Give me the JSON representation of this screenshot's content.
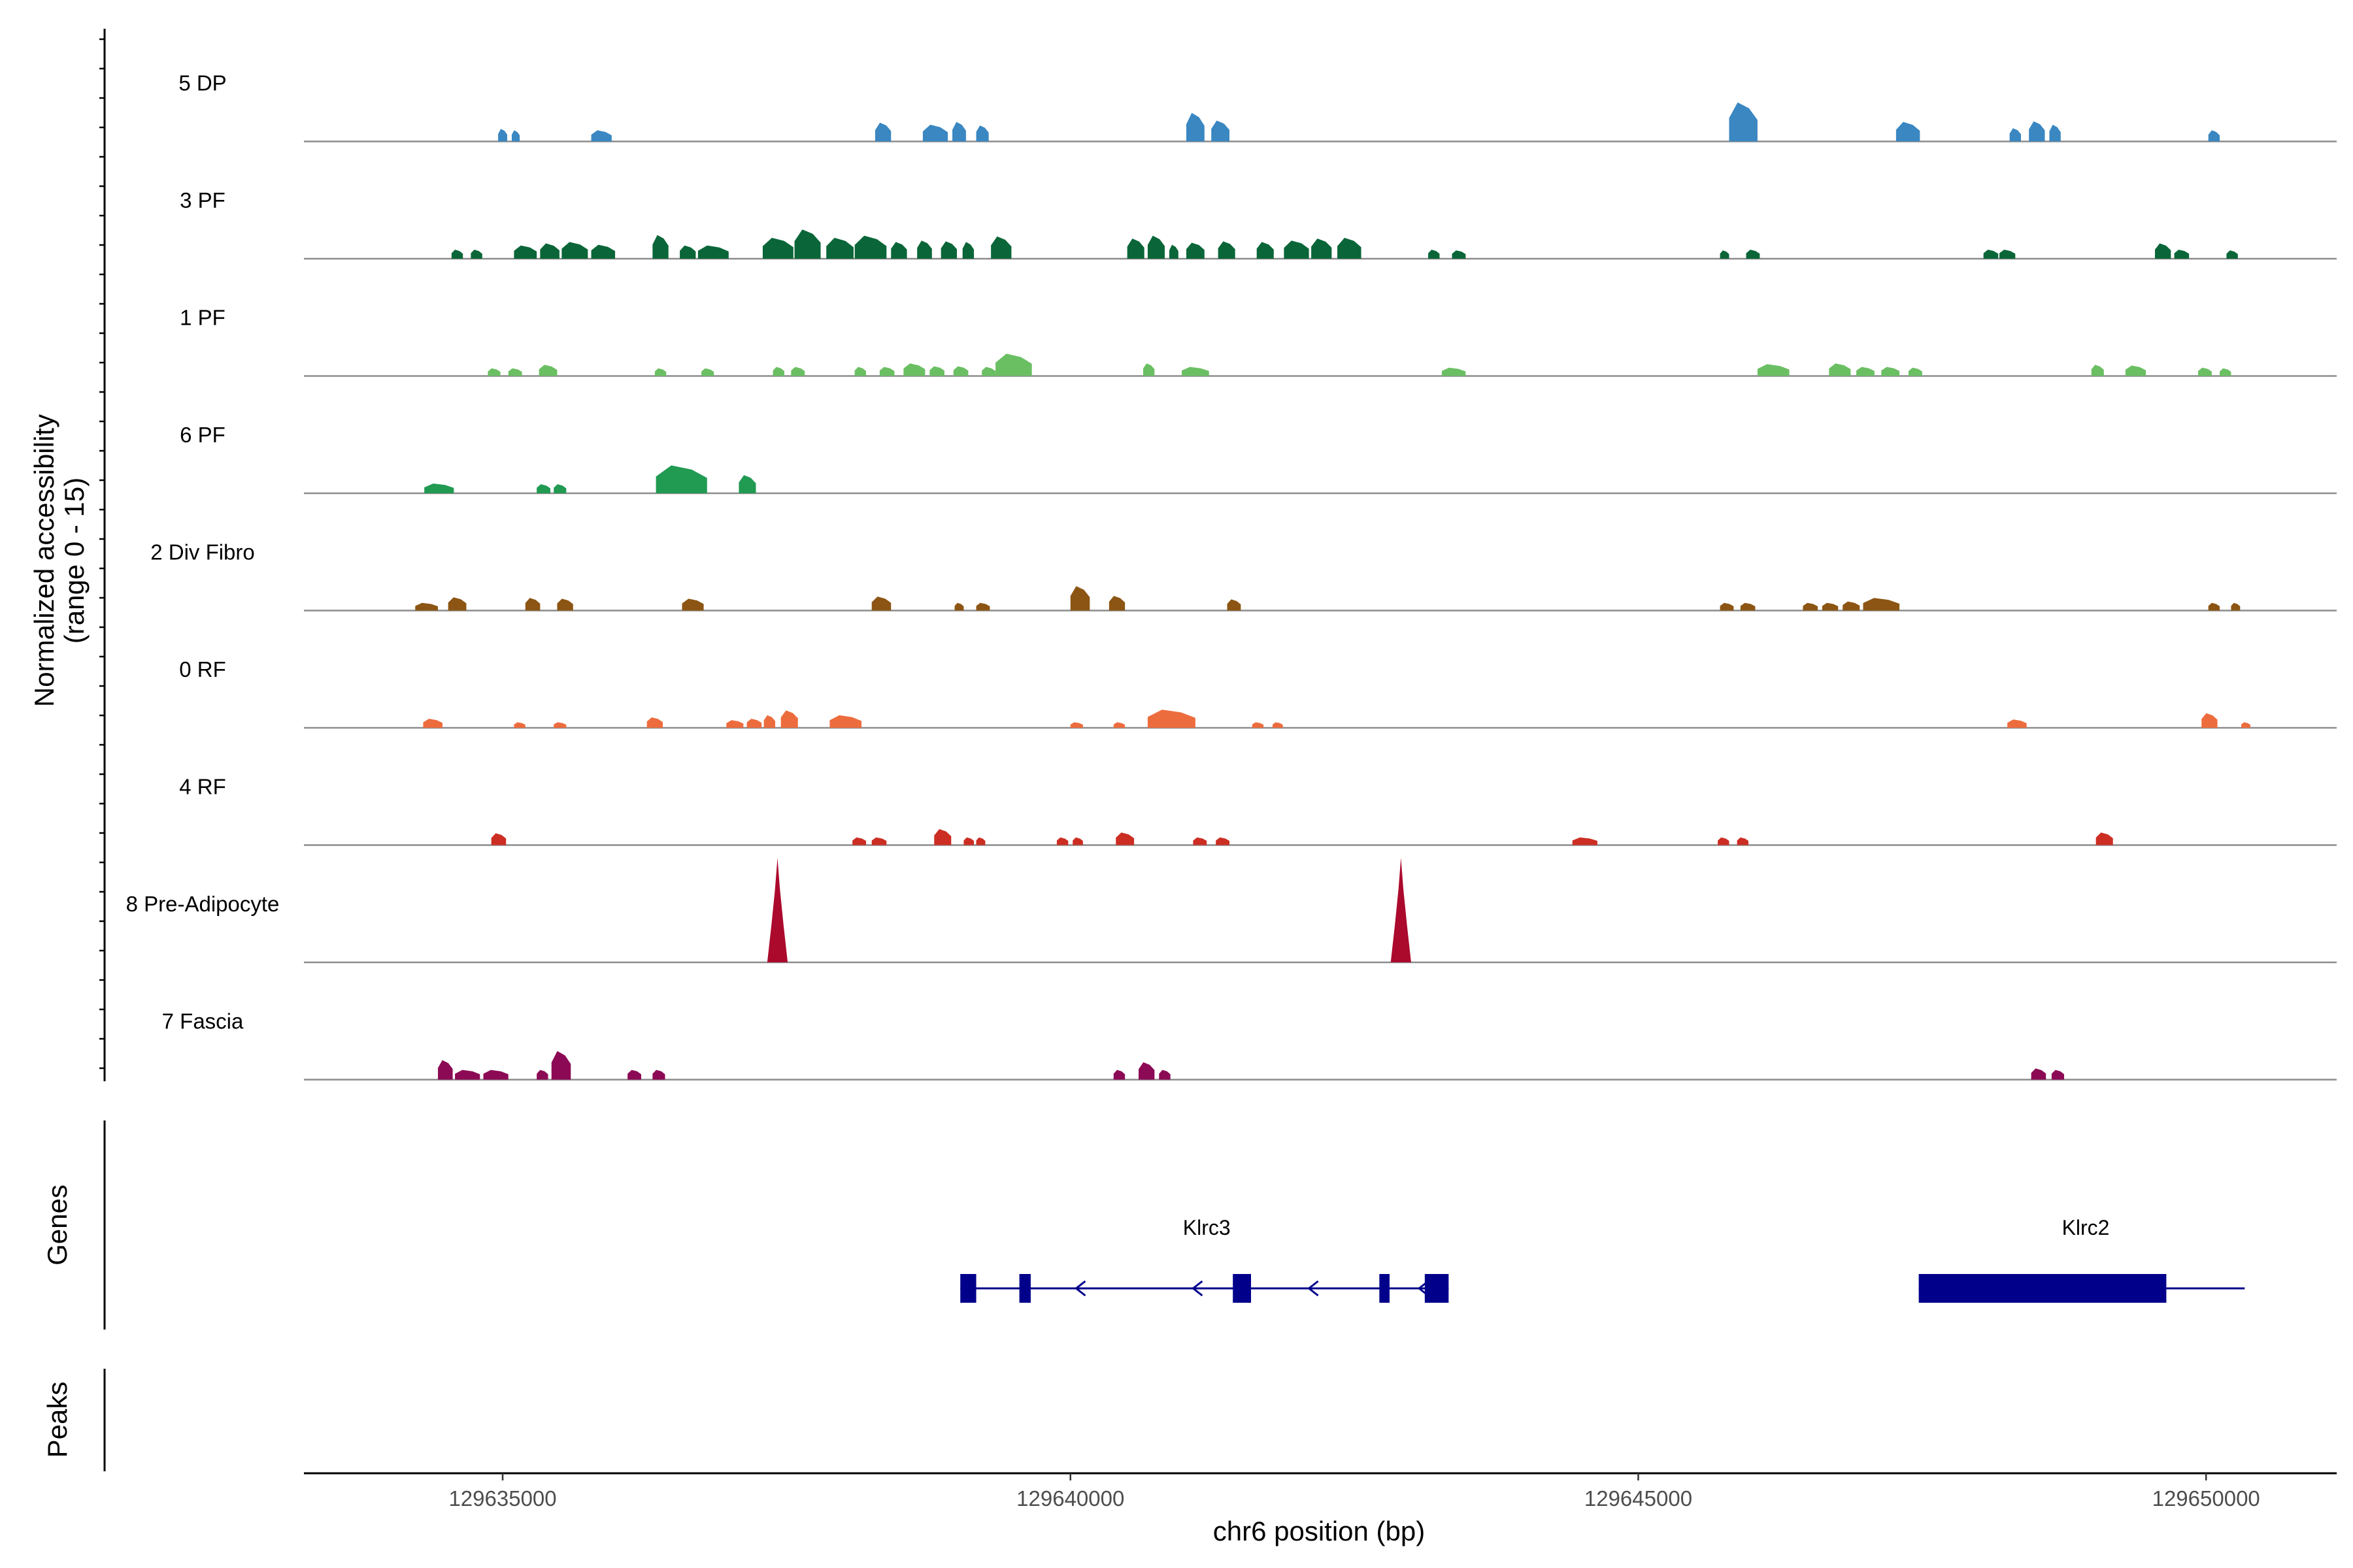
{
  "chart_data": {
    "type": "area",
    "region": "chr6",
    "xlim": [
      129633250,
      129651150
    ],
    "xticks": [
      129635000,
      129640000,
      129645000,
      129650000
    ],
    "xtick_labels": [
      "129635000",
      "129640000",
      "129645000",
      "129650000"
    ],
    "xlabel": "chr6 position (bp)",
    "ylabel_line1": "Normalized accessibility",
    "ylabel_line2": "(range 0 - 15)",
    "ylim": [
      0,
      15
    ],
    "tracks": [
      {
        "name": "5 DP",
        "color": "#3a87c2",
        "peaks": [
          {
            "start": 129634960,
            "end": 129635040,
            "height": 1.8
          },
          {
            "start": 129635080,
            "end": 129635150,
            "height": 1.6
          },
          {
            "start": 129635780,
            "end": 129635960,
            "height": 1.6
          },
          {
            "start": 129638280,
            "end": 129638420,
            "height": 2.7
          },
          {
            "start": 129638700,
            "end": 129638920,
            "height": 2.4
          },
          {
            "start": 129638960,
            "end": 129639080,
            "height": 2.8
          },
          {
            "start": 129639170,
            "end": 129639280,
            "height": 2.3
          },
          {
            "start": 129641020,
            "end": 129641180,
            "height": 4.1
          },
          {
            "start": 129641240,
            "end": 129641400,
            "height": 3.0
          },
          {
            "start": 129645800,
            "end": 129646050,
            "height": 5.6
          },
          {
            "start": 129647270,
            "end": 129647480,
            "height": 2.8
          },
          {
            "start": 129648270,
            "end": 129648370,
            "height": 1.9
          },
          {
            "start": 129648440,
            "end": 129648580,
            "height": 2.9
          },
          {
            "start": 129648620,
            "end": 129648720,
            "height": 2.4
          },
          {
            "start": 129650020,
            "end": 129650120,
            "height": 1.6
          }
        ]
      },
      {
        "name": "3 PF",
        "color": "#0a6638",
        "peaks": [
          {
            "start": 129634550,
            "end": 129634650,
            "height": 1.3
          },
          {
            "start": 129634720,
            "end": 129634820,
            "height": 1.3
          },
          {
            "start": 129635100,
            "end": 129635300,
            "height": 1.9
          },
          {
            "start": 129635330,
            "end": 129635500,
            "height": 2.2
          },
          {
            "start": 129635520,
            "end": 129635750,
            "height": 2.4
          },
          {
            "start": 129635780,
            "end": 129635990,
            "height": 2.0
          },
          {
            "start": 129636320,
            "end": 129636460,
            "height": 3.4
          },
          {
            "start": 129636560,
            "end": 129636700,
            "height": 1.9
          },
          {
            "start": 129636720,
            "end": 129636990,
            "height": 1.9
          },
          {
            "start": 129637290,
            "end": 129637560,
            "height": 3.0
          },
          {
            "start": 129637570,
            "end": 129637800,
            "height": 4.2
          },
          {
            "start": 129637850,
            "end": 129638090,
            "height": 3.0
          },
          {
            "start": 129638100,
            "end": 129638380,
            "height": 3.3
          },
          {
            "start": 129638420,
            "end": 129638560,
            "height": 2.4
          },
          {
            "start": 129638650,
            "end": 129638780,
            "height": 2.6
          },
          {
            "start": 129638860,
            "end": 129639000,
            "height": 2.5
          },
          {
            "start": 129639050,
            "end": 129639150,
            "height": 2.4
          },
          {
            "start": 129639300,
            "end": 129639480,
            "height": 3.2
          },
          {
            "start": 129640500,
            "end": 129640650,
            "height": 2.9
          },
          {
            "start": 129640680,
            "end": 129640830,
            "height": 3.3
          },
          {
            "start": 129640870,
            "end": 129640950,
            "height": 2.0
          },
          {
            "start": 129641020,
            "end": 129641180,
            "height": 2.3
          },
          {
            "start": 129641300,
            "end": 129641450,
            "height": 2.5
          },
          {
            "start": 129641640,
            "end": 129641790,
            "height": 2.4
          },
          {
            "start": 129641880,
            "end": 129642100,
            "height": 2.6
          },
          {
            "start": 129642120,
            "end": 129642300,
            "height": 2.9
          },
          {
            "start": 129642350,
            "end": 129642560,
            "height": 3.0
          },
          {
            "start": 129643150,
            "end": 129643250,
            "height": 1.3
          },
          {
            "start": 129643360,
            "end": 129643480,
            "height": 1.2
          },
          {
            "start": 129645720,
            "end": 129645800,
            "height": 1.2
          },
          {
            "start": 129645950,
            "end": 129646070,
            "height": 1.3
          },
          {
            "start": 129648040,
            "end": 129648170,
            "height": 1.3
          },
          {
            "start": 129648180,
            "end": 129648320,
            "height": 1.3
          },
          {
            "start": 129649550,
            "end": 129649690,
            "height": 2.2
          },
          {
            "start": 129649720,
            "end": 129649850,
            "height": 1.3
          },
          {
            "start": 129650180,
            "end": 129650280,
            "height": 1.2
          }
        ]
      },
      {
        "name": "1 PF",
        "color": "#6bbf63",
        "peaks": [
          {
            "start": 129634870,
            "end": 129634980,
            "height": 1.1
          },
          {
            "start": 129635050,
            "end": 129635170,
            "height": 1.1
          },
          {
            "start": 129635320,
            "end": 129635480,
            "height": 1.6
          },
          {
            "start": 129636340,
            "end": 129636440,
            "height": 1.1
          },
          {
            "start": 129636750,
            "end": 129636860,
            "height": 1.1
          },
          {
            "start": 129637380,
            "end": 129637480,
            "height": 1.3
          },
          {
            "start": 129637540,
            "end": 129637660,
            "height": 1.3
          },
          {
            "start": 129638100,
            "end": 129638200,
            "height": 1.3
          },
          {
            "start": 129638320,
            "end": 129638450,
            "height": 1.3
          },
          {
            "start": 129638530,
            "end": 129638720,
            "height": 1.8
          },
          {
            "start": 129638760,
            "end": 129638890,
            "height": 1.4
          },
          {
            "start": 129638970,
            "end": 129639100,
            "height": 1.4
          },
          {
            "start": 129639220,
            "end": 129639340,
            "height": 1.3
          },
          {
            "start": 129639340,
            "end": 129639660,
            "height": 3.2
          },
          {
            "start": 129640640,
            "end": 129640740,
            "height": 1.8
          },
          {
            "start": 129640980,
            "end": 129641220,
            "height": 1.3
          },
          {
            "start": 129643270,
            "end": 129643480,
            "height": 1.2
          },
          {
            "start": 129646050,
            "end": 129646330,
            "height": 1.7
          },
          {
            "start": 129646680,
            "end": 129646870,
            "height": 1.8
          },
          {
            "start": 129646920,
            "end": 129647080,
            "height": 1.3
          },
          {
            "start": 129647140,
            "end": 129647300,
            "height": 1.3
          },
          {
            "start": 129647380,
            "end": 129647500,
            "height": 1.2
          },
          {
            "start": 129648990,
            "end": 129649100,
            "height": 1.6
          },
          {
            "start": 129649290,
            "end": 129649470,
            "height": 1.5
          },
          {
            "start": 129649930,
            "end": 129650050,
            "height": 1.2
          },
          {
            "start": 129650120,
            "end": 129650220,
            "height": 1.1
          }
        ]
      },
      {
        "name": "6 PF",
        "color": "#219a52",
        "peaks": [
          {
            "start": 129634310,
            "end": 129634570,
            "height": 1.4
          },
          {
            "start": 129635300,
            "end": 129635420,
            "height": 1.3
          },
          {
            "start": 129635450,
            "end": 129635560,
            "height": 1.3
          },
          {
            "start": 129636350,
            "end": 129636800,
            "height": 4.0
          },
          {
            "start": 129637080,
            "end": 129637230,
            "height": 2.6
          }
        ]
      },
      {
        "name": "2 Div Fibro",
        "color": "#8c5513",
        "peaks": [
          {
            "start": 129634230,
            "end": 129634430,
            "height": 1.1
          },
          {
            "start": 129634520,
            "end": 129634680,
            "height": 1.9
          },
          {
            "start": 129635200,
            "end": 129635330,
            "height": 1.8
          },
          {
            "start": 129635480,
            "end": 129635620,
            "height": 1.7
          },
          {
            "start": 129636580,
            "end": 129636770,
            "height": 1.7
          },
          {
            "start": 129638250,
            "end": 129638420,
            "height": 2.0
          },
          {
            "start": 129638980,
            "end": 129639060,
            "height": 1.1
          },
          {
            "start": 129639170,
            "end": 129639290,
            "height": 1.1
          },
          {
            "start": 129640000,
            "end": 129640170,
            "height": 3.5
          },
          {
            "start": 129640340,
            "end": 129640480,
            "height": 2.1
          },
          {
            "start": 129641380,
            "end": 129641500,
            "height": 1.6
          },
          {
            "start": 129645720,
            "end": 129645840,
            "height": 1.1
          },
          {
            "start": 129645900,
            "end": 129646030,
            "height": 1.1
          },
          {
            "start": 129646450,
            "end": 129646580,
            "height": 1.1
          },
          {
            "start": 129646620,
            "end": 129646760,
            "height": 1.1
          },
          {
            "start": 129646800,
            "end": 129646950,
            "height": 1.3
          },
          {
            "start": 129646980,
            "end": 129647300,
            "height": 1.8
          },
          {
            "start": 129650020,
            "end": 129650120,
            "height": 1.1
          },
          {
            "start": 129650220,
            "end": 129650300,
            "height": 1.1
          }
        ]
      },
      {
        "name": "0 RF",
        "color": "#ed6c3e",
        "peaks": [
          {
            "start": 129634300,
            "end": 129634470,
            "height": 1.3
          },
          {
            "start": 129635100,
            "end": 129635200,
            "height": 0.8
          },
          {
            "start": 129635450,
            "end": 129635560,
            "height": 0.8
          },
          {
            "start": 129636270,
            "end": 129636410,
            "height": 1.5
          },
          {
            "start": 129636970,
            "end": 129637120,
            "height": 1.1
          },
          {
            "start": 129637150,
            "end": 129637280,
            "height": 1.3
          },
          {
            "start": 129637300,
            "end": 129637400,
            "height": 1.8
          },
          {
            "start": 129637450,
            "end": 129637600,
            "height": 2.5
          },
          {
            "start": 129637880,
            "end": 129638160,
            "height": 1.8
          },
          {
            "start": 129640000,
            "end": 129640110,
            "height": 0.8
          },
          {
            "start": 129640380,
            "end": 129640480,
            "height": 0.8
          },
          {
            "start": 129640680,
            "end": 129641100,
            "height": 2.6
          },
          {
            "start": 129641600,
            "end": 129641700,
            "height": 0.8
          },
          {
            "start": 129641780,
            "end": 129641870,
            "height": 0.8
          },
          {
            "start": 129648250,
            "end": 129648420,
            "height": 1.2
          },
          {
            "start": 129649960,
            "end": 129650100,
            "height": 2.1
          },
          {
            "start": 129650310,
            "end": 129650390,
            "height": 0.8
          }
        ]
      },
      {
        "name": "4 RF",
        "color": "#cc2e23",
        "peaks": [
          {
            "start": 129634900,
            "end": 129635030,
            "height": 1.7
          },
          {
            "start": 129638080,
            "end": 129638200,
            "height": 1.1
          },
          {
            "start": 129638250,
            "end": 129638380,
            "height": 1.1
          },
          {
            "start": 129638800,
            "end": 129638950,
            "height": 2.3
          },
          {
            "start": 129639060,
            "end": 129639150,
            "height": 1.1
          },
          {
            "start": 129639170,
            "end": 129639250,
            "height": 1.1
          },
          {
            "start": 129639880,
            "end": 129639980,
            "height": 1.1
          },
          {
            "start": 129640020,
            "end": 129640110,
            "height": 1.1
          },
          {
            "start": 129640400,
            "end": 129640560,
            "height": 1.8
          },
          {
            "start": 129641080,
            "end": 129641200,
            "height": 1.1
          },
          {
            "start": 129641280,
            "end": 129641400,
            "height": 1.1
          },
          {
            "start": 129644420,
            "end": 129644640,
            "height": 1.1
          },
          {
            "start": 129645700,
            "end": 129645800,
            "height": 1.1
          },
          {
            "start": 129645870,
            "end": 129645970,
            "height": 1.1
          },
          {
            "start": 129649030,
            "end": 129649180,
            "height": 1.8
          }
        ]
      },
      {
        "name": "8 Pre-Adipocyte",
        "color": "#ab0a2d",
        "peaks": [
          {
            "start": 129637330,
            "end": 129637510,
            "height": 15.0
          },
          {
            "start": 129642820,
            "end": 129643000,
            "height": 15.0
          }
        ]
      },
      {
        "name": "7 Fascia",
        "color": "#8c0a55",
        "peaks": [
          {
            "start": 129634430,
            "end": 129634560,
            "height": 2.8
          },
          {
            "start": 129634580,
            "end": 129634800,
            "height": 1.4
          },
          {
            "start": 129634830,
            "end": 129635050,
            "height": 1.4
          },
          {
            "start": 129635300,
            "end": 129635400,
            "height": 1.4
          },
          {
            "start": 129635430,
            "end": 129635600,
            "height": 4.1
          },
          {
            "start": 129636100,
            "end": 129636220,
            "height": 1.4
          },
          {
            "start": 129636320,
            "end": 129636430,
            "height": 1.4
          },
          {
            "start": 129640380,
            "end": 129640480,
            "height": 1.4
          },
          {
            "start": 129640600,
            "end": 129640740,
            "height": 2.5
          },
          {
            "start": 129640780,
            "end": 129640880,
            "height": 1.4
          },
          {
            "start": 129648460,
            "end": 129648590,
            "height": 1.6
          },
          {
            "start": 129648640,
            "end": 129648750,
            "height": 1.4
          }
        ]
      }
    ],
    "genes": {
      "title": "Genes",
      "color": "#00008b",
      "items": [
        {
          "name": "Klrc3",
          "strand": "-",
          "start": 129639030,
          "end": 129643330,
          "label_pos": 129641200,
          "exons": [
            [
              129639030,
              129639170
            ],
            [
              129639550,
              129639650
            ],
            [
              129641430,
              129641590
            ],
            [
              129642720,
              129642810
            ],
            [
              129643120,
              129643330
            ]
          ],
          "arrows": [
            129640050,
            129641080,
            129642100,
            129643070
          ]
        },
        {
          "name": "Klrc2",
          "strand": "+",
          "start": 129647470,
          "end": 129650340,
          "label_pos": 129648940,
          "exons": [
            [
              129647470,
              129649650
            ]
          ],
          "arrows": []
        }
      ]
    },
    "peaks_track": {
      "title": "Peaks",
      "items": []
    }
  }
}
